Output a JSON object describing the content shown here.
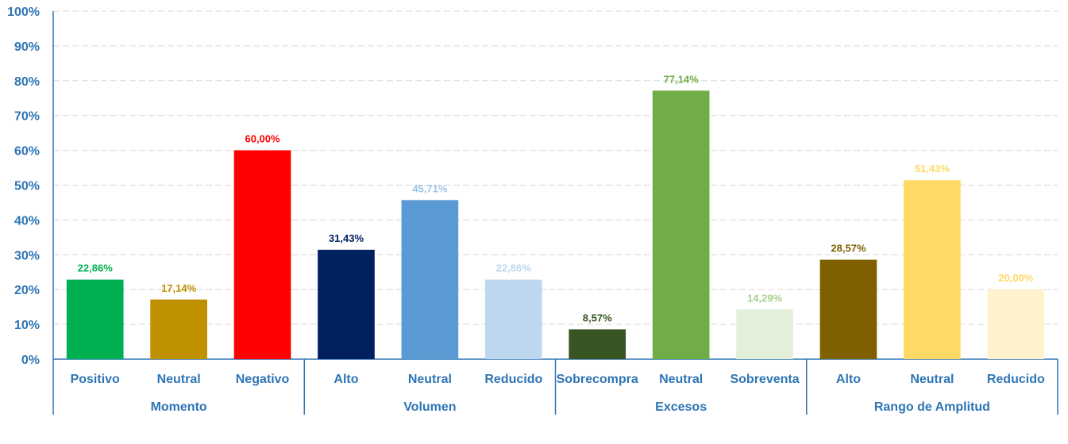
{
  "chart_data": {
    "type": "bar",
    "title": "",
    "xlabel": "",
    "ylabel": "",
    "ylim": [
      0,
      100
    ],
    "y_ticks": [
      "0%",
      "10%",
      "20%",
      "30%",
      "40%",
      "50%",
      "60%",
      "70%",
      "80%",
      "90%",
      "100%"
    ],
    "grid": true,
    "legend": "none",
    "groups": [
      {
        "name": "Momento",
        "bars": [
          {
            "category": "Positivo",
            "value": 22.86,
            "label": "22,86%",
            "color": "#00b050",
            "label_color": "#00b050"
          },
          {
            "category": "Neutral",
            "value": 17.14,
            "label": "17,14%",
            "color": "#bf9000",
            "label_color": "#bf9000"
          },
          {
            "category": "Negativo",
            "value": 60.0,
            "label": "60,00%",
            "color": "#ff0000",
            "label_color": "#ff0000"
          }
        ]
      },
      {
        "name": "Volumen",
        "bars": [
          {
            "category": "Alto",
            "value": 31.43,
            "label": "31,43%",
            "color": "#002060",
            "label_color": "#002060"
          },
          {
            "category": "Neutral",
            "value": 45.71,
            "label": "45,71%",
            "color": "#5b9bd5",
            "label_color": "#9dc3e6"
          },
          {
            "category": "Reducido",
            "value": 22.86,
            "label": "22,86%",
            "color": "#bdd7ee",
            "label_color": "#bdd7ee"
          }
        ]
      },
      {
        "name": "Excesos",
        "bars": [
          {
            "category": "Sobrecompra",
            "value": 8.57,
            "label": "8,57%",
            "color": "#375623",
            "label_color": "#375623"
          },
          {
            "category": "Neutral",
            "value": 77.14,
            "label": "77,14%",
            "color": "#70ad47",
            "label_color": "#70ad47"
          },
          {
            "category": "Sobreventa",
            "value": 14.29,
            "label": "14,29%",
            "color": "#e2efda",
            "label_color": "#a9d18e"
          }
        ]
      },
      {
        "name": "Rango de Amplitud",
        "bars": [
          {
            "category": "Alto",
            "value": 28.57,
            "label": "28,57%",
            "color": "#7f6000",
            "label_color": "#7f6000"
          },
          {
            "category": "Neutral",
            "value": 51.43,
            "label": "51,43%",
            "color": "#ffd966",
            "label_color": "#ffd966"
          },
          {
            "category": "Reducido",
            "value": 20.0,
            "label": "20,00%",
            "color": "#fff2cc",
            "label_color": "#ffd966"
          }
        ]
      }
    ]
  }
}
